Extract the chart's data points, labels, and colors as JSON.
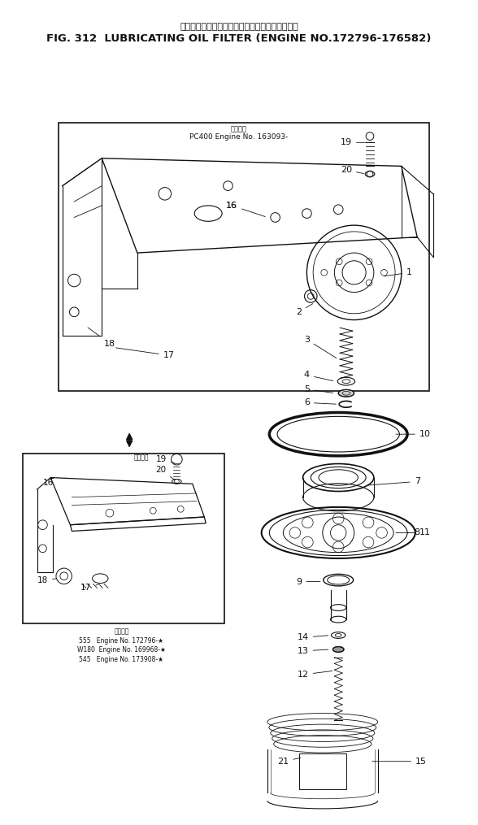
{
  "title_japanese": "ルーブリケーティングオイルフィルタ　適用号機",
  "title_english": "FIG. 312  LUBRICATING OIL FILTER (ENGINE NO.172796-176582)",
  "bg_color": "#ffffff",
  "fig_width": 5.88,
  "fig_height": 10.15,
  "dpi": 100,
  "pc400_label1": "適用号機",
  "pc400_label2": "PC400 Engine No. 163093-",
  "inset_header": "適用号機",
  "inset_line1": "555   Engine No. 172796-★",
  "inset_line2": "W180  Engine No. 169968-★",
  "inset_line3": "545   Engine No. 173908-★"
}
